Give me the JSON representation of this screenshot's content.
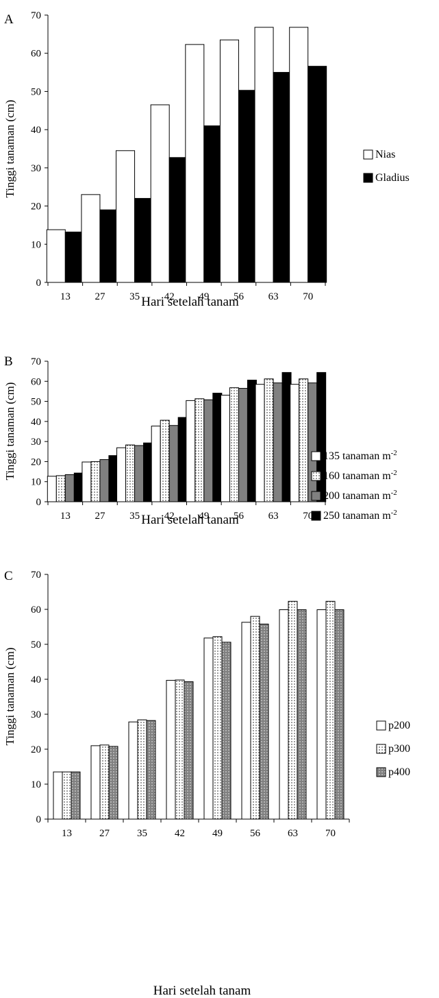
{
  "colors": {
    "outline": "#000000",
    "white_fill": "#ffffff",
    "black_fill": "#000000",
    "gray_fill": "#808080",
    "dot_color": "#222222"
  },
  "chart_data": [
    {
      "type": "bar",
      "panel_label": "A",
      "xlabel": "Hari setelah tanam",
      "ylabel": "Tinggi tanaman (cm)",
      "ylim": [
        0,
        70
      ],
      "yticks": [
        0,
        10,
        20,
        30,
        40,
        50,
        60,
        70
      ],
      "grid": false,
      "legend_position": "right",
      "categories": [
        "13",
        "27",
        "35",
        "42",
        "49",
        "56",
        "63",
        "70"
      ],
      "series": [
        {
          "name": "Nias",
          "fill": "white",
          "values": [
            13.8,
            23.0,
            34.5,
            46.5,
            62.3,
            63.5,
            66.8,
            66.8
          ]
        },
        {
          "name": "Gladius",
          "fill": "black",
          "values": [
            13.2,
            19.0,
            22.0,
            32.7,
            41.0,
            50.3,
            55.0,
            56.6
          ]
        }
      ]
    },
    {
      "type": "bar",
      "panel_label": "B",
      "xlabel": "Hari setelah tanam",
      "ylabel": "Tinggi tanaman (cm)",
      "ylim": [
        0,
        70
      ],
      "yticks": [
        0,
        10,
        20,
        30,
        40,
        50,
        60,
        70
      ],
      "grid": false,
      "legend_position": "right",
      "categories": [
        "13",
        "27",
        "35",
        "42",
        "49",
        "56",
        "63",
        "70"
      ],
      "series": [
        {
          "name": "135 tanaman m",
          "superscript": "-2",
          "fill": "white",
          "values": [
            12.7,
            19.8,
            26.9,
            37.7,
            50.4,
            53.1,
            58.5,
            58.5
          ]
        },
        {
          "name": "160 tanaman m",
          "superscript": "-2",
          "fill": "dotted",
          "values": [
            13.0,
            20.0,
            28.3,
            40.6,
            51.3,
            56.8,
            61.2,
            61.2
          ]
        },
        {
          "name": "200 tanaman m",
          "superscript": "-2",
          "fill": "gray",
          "values": [
            13.5,
            21.0,
            28.0,
            38.0,
            50.8,
            56.5,
            59.2,
            59.2
          ]
        },
        {
          "name": "250 tanaman m",
          "superscript": "-2",
          "fill": "black",
          "values": [
            14.3,
            23.0,
            29.3,
            42.0,
            54.1,
            60.6,
            64.4,
            64.4
          ]
        }
      ]
    },
    {
      "type": "bar",
      "panel_label": "C",
      "xlabel": "Hari setelah tanam",
      "ylabel": "Tinggi tanaman (cm)",
      "ylim": [
        0,
        70
      ],
      "yticks": [
        0,
        10,
        20,
        30,
        40,
        50,
        60,
        70
      ],
      "grid": false,
      "legend_position": "right",
      "categories": [
        "13",
        "27",
        "35",
        "42",
        "49",
        "56",
        "63",
        "70"
      ],
      "series": [
        {
          "name": "p200",
          "fill": "white",
          "values": [
            13.5,
            21.0,
            27.8,
            39.7,
            51.8,
            56.3,
            59.9,
            59.9
          ]
        },
        {
          "name": "p300",
          "fill": "dotted",
          "values": [
            13.5,
            21.2,
            28.4,
            39.8,
            52.2,
            58.0,
            62.3,
            62.3
          ]
        },
        {
          "name": "p400",
          "fill": "dotted-gray",
          "values": [
            13.5,
            20.8,
            28.2,
            39.3,
            50.6,
            55.8,
            59.9,
            59.9
          ]
        }
      ]
    }
  ]
}
